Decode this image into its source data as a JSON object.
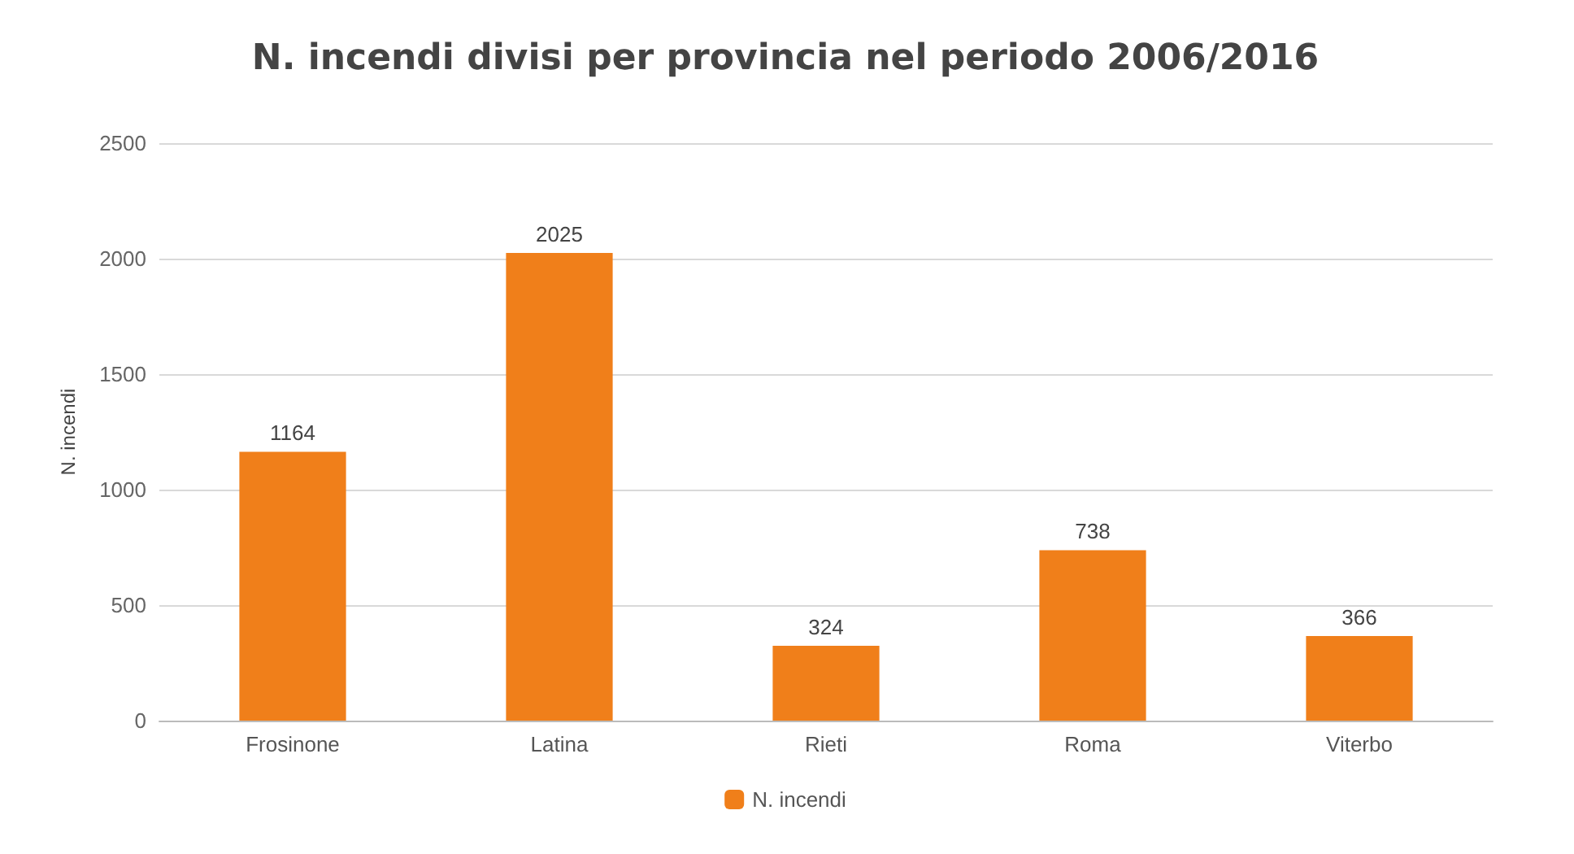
{
  "chart_data": {
    "type": "bar",
    "title": "N. incendi divisi per provincia nel periodo 2006/2016",
    "ylabel": "N. incendi",
    "categories": [
      "Frosinone",
      "Latina",
      "Rieti",
      "Roma",
      "Viterbo"
    ],
    "series": [
      {
        "name": "N. incendi",
        "color": "#f07f1a",
        "values": [
          1164,
          2025,
          324,
          738,
          366
        ]
      }
    ],
    "ylim": [
      0,
      2500
    ],
    "yticks": [
      0,
      500,
      1000,
      1500,
      2000,
      2500
    ],
    "grid": "y",
    "legend": "bottom",
    "data_labels": true
  }
}
